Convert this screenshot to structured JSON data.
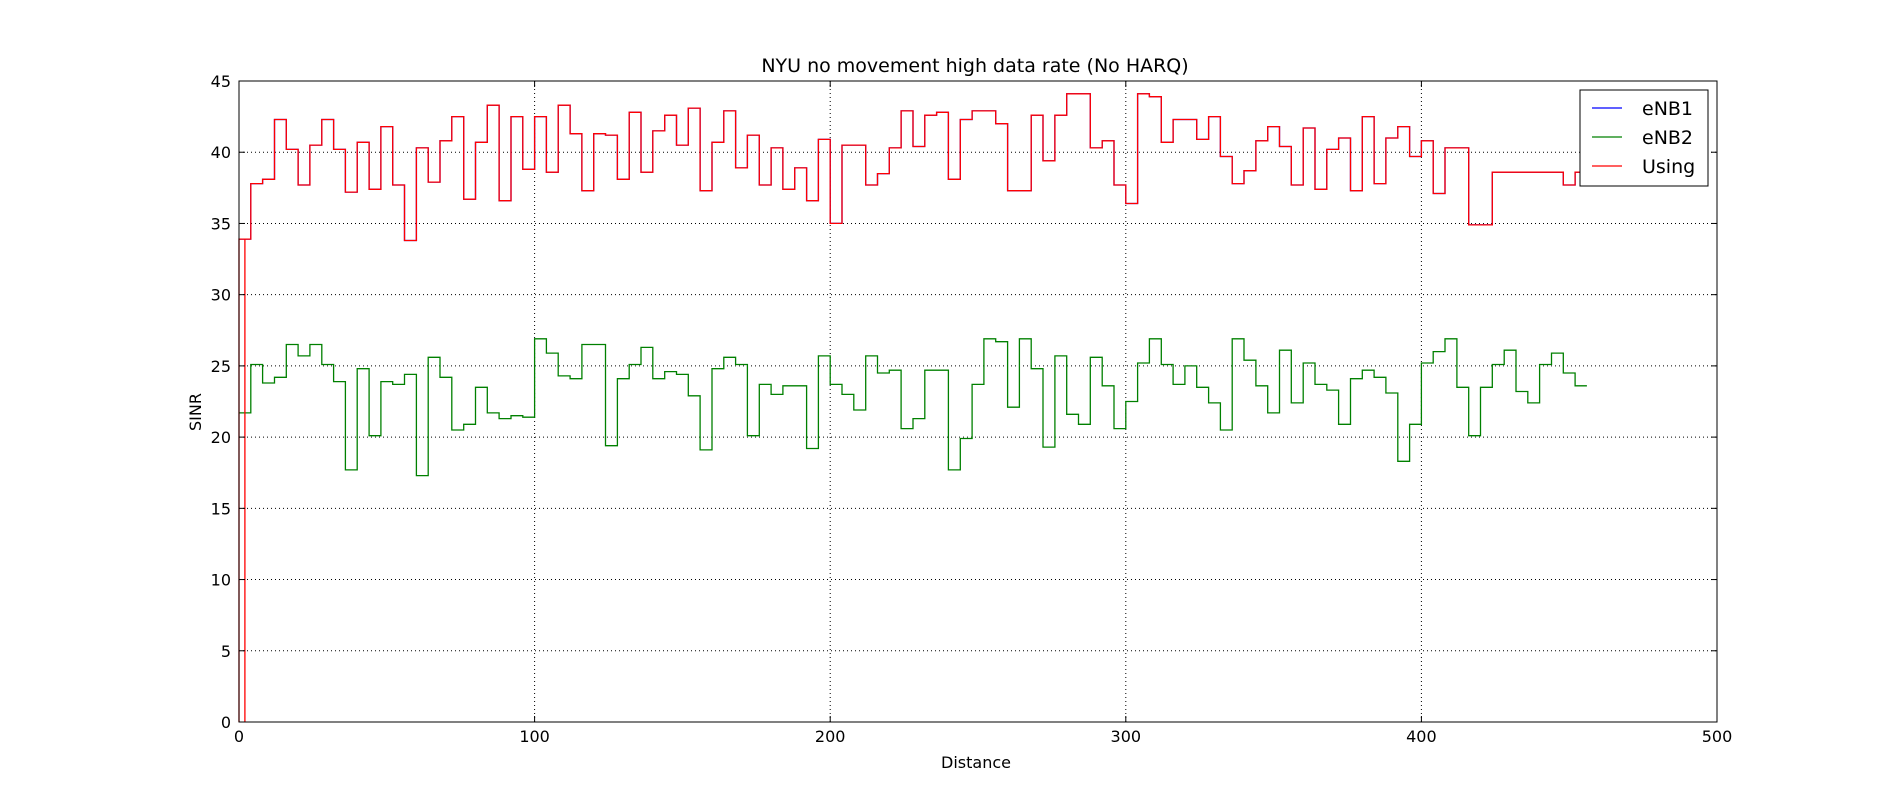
{
  "chart_data": {
    "type": "line",
    "title": "NYU no movement high data rate (No HARQ)",
    "xlabel": "Distance",
    "ylabel": "SINR",
    "xlim": [
      0,
      500
    ],
    "ylim": [
      0,
      45
    ],
    "xticks": [
      0,
      100,
      200,
      300,
      400,
      500
    ],
    "yticks": [
      0,
      5,
      10,
      15,
      20,
      25,
      30,
      35,
      40,
      45
    ],
    "grid": true,
    "grid_style": "dotted",
    "legend_position": "top-right",
    "step_width": 4,
    "series": [
      {
        "name": "eNB1",
        "color": "#0000ff",
        "style": "step",
        "values": [
          33.9,
          37.8,
          38.1,
          42.3,
          40.2,
          37.7,
          40.5,
          42.3,
          40.2,
          37.2,
          40.7,
          37.4,
          41.8,
          37.7,
          33.8,
          40.3,
          37.9,
          40.8,
          42.5,
          36.7,
          40.7,
          43.3,
          36.6,
          42.5,
          38.8,
          42.5,
          38.6,
          43.3,
          41.3,
          37.3,
          41.3,
          41.2,
          38.1,
          42.8,
          38.6,
          41.5,
          42.6,
          40.5,
          43.1,
          37.3,
          40.7,
          42.9,
          38.9,
          41.2,
          37.7,
          40.3,
          37.4,
          38.9,
          36.6,
          40.9,
          35.0,
          40.5,
          40.5,
          37.7,
          38.5,
          40.3,
          42.9,
          40.4,
          42.6,
          42.8,
          38.1,
          42.3,
          42.9,
          42.9,
          42.0,
          37.3,
          37.3,
          42.6,
          39.4,
          42.6,
          44.1,
          44.1,
          40.3,
          40.8,
          37.7,
          36.4,
          44.1,
          43.9,
          40.7,
          42.3,
          42.3,
          40.9,
          42.5,
          39.7,
          37.8,
          38.7,
          40.8,
          41.8,
          40.4,
          37.7,
          41.7,
          37.4,
          40.2,
          41.0,
          37.3,
          42.5,
          37.8,
          41.0,
          41.8,
          39.7,
          40.8,
          37.1,
          40.3,
          40.3,
          34.9,
          34.9,
          38.6,
          38.6,
          38.6,
          38.6,
          38.6,
          38.6,
          37.7,
          38.6
        ]
      },
      {
        "name": "eNB2",
        "color": "#008000",
        "style": "step",
        "values": [
          21.7,
          25.1,
          23.8,
          24.2,
          26.5,
          25.7,
          26.5,
          25.1,
          23.9,
          17.7,
          24.8,
          20.1,
          23.9,
          23.7,
          24.4,
          17.3,
          25.6,
          24.2,
          20.5,
          20.9,
          23.5,
          21.7,
          21.3,
          21.5,
          21.4,
          26.9,
          25.9,
          24.3,
          24.1,
          26.5,
          26.5,
          19.4,
          24.1,
          25.1,
          26.3,
          24.1,
          24.6,
          24.4,
          22.9,
          19.1,
          24.8,
          25.6,
          25.1,
          20.1,
          23.7,
          23.0,
          23.6,
          23.6,
          19.2,
          25.7,
          23.7,
          23.0,
          21.9,
          25.7,
          24.5,
          24.7,
          20.6,
          21.3,
          24.7,
          24.7,
          17.7,
          19.9,
          23.7,
          26.9,
          26.7,
          22.1,
          26.9,
          24.8,
          19.3,
          25.7,
          21.6,
          20.9,
          25.6,
          23.6,
          20.6,
          22.5,
          25.2,
          26.9,
          25.1,
          23.7,
          25.0,
          23.5,
          22.4,
          20.5,
          26.9,
          25.4,
          23.6,
          21.7,
          26.1,
          22.4,
          25.2,
          23.7,
          23.3,
          20.9,
          24.1,
          24.7,
          24.2,
          23.1,
          18.3,
          20.9,
          25.2,
          26.0,
          26.9,
          23.5,
          20.1,
          23.5,
          25.1,
          26.1,
          23.2,
          22.4,
          25.1,
          25.9,
          24.5,
          23.6
        ]
      },
      {
        "name": "Using",
        "color": "#ff0000",
        "style": "step",
        "values": [
          33.9,
          37.8,
          38.1,
          42.3,
          40.2,
          37.7,
          40.5,
          42.3,
          40.2,
          37.2,
          40.7,
          37.4,
          41.8,
          37.7,
          33.8,
          40.3,
          37.9,
          40.8,
          42.5,
          36.7,
          40.7,
          43.3,
          36.6,
          42.5,
          38.8,
          42.5,
          38.6,
          43.3,
          41.3,
          37.3,
          41.3,
          41.2,
          38.1,
          42.8,
          38.6,
          41.5,
          42.6,
          40.5,
          43.1,
          37.3,
          40.7,
          42.9,
          38.9,
          41.2,
          37.7,
          40.3,
          37.4,
          38.9,
          36.6,
          40.9,
          35.0,
          40.5,
          40.5,
          37.7,
          38.5,
          40.3,
          42.9,
          40.4,
          42.6,
          42.8,
          38.1,
          42.3,
          42.9,
          42.9,
          42.0,
          37.3,
          37.3,
          42.6,
          39.4,
          42.6,
          44.1,
          44.1,
          40.3,
          40.8,
          37.7,
          36.4,
          44.1,
          43.9,
          40.7,
          42.3,
          42.3,
          40.9,
          42.5,
          39.7,
          37.8,
          38.7,
          40.8,
          41.8,
          40.4,
          37.7,
          41.7,
          37.4,
          40.2,
          41.0,
          37.3,
          42.5,
          37.8,
          41.0,
          41.8,
          39.7,
          40.8,
          37.1,
          40.3,
          40.3,
          34.9,
          34.9,
          38.6,
          38.6,
          38.6,
          38.6,
          38.6,
          38.6,
          37.7,
          38.6
        ]
      }
    ],
    "initial_spike": {
      "series": "Using",
      "x": [
        0,
        2
      ],
      "y": [
        0,
        33.9
      ]
    }
  }
}
